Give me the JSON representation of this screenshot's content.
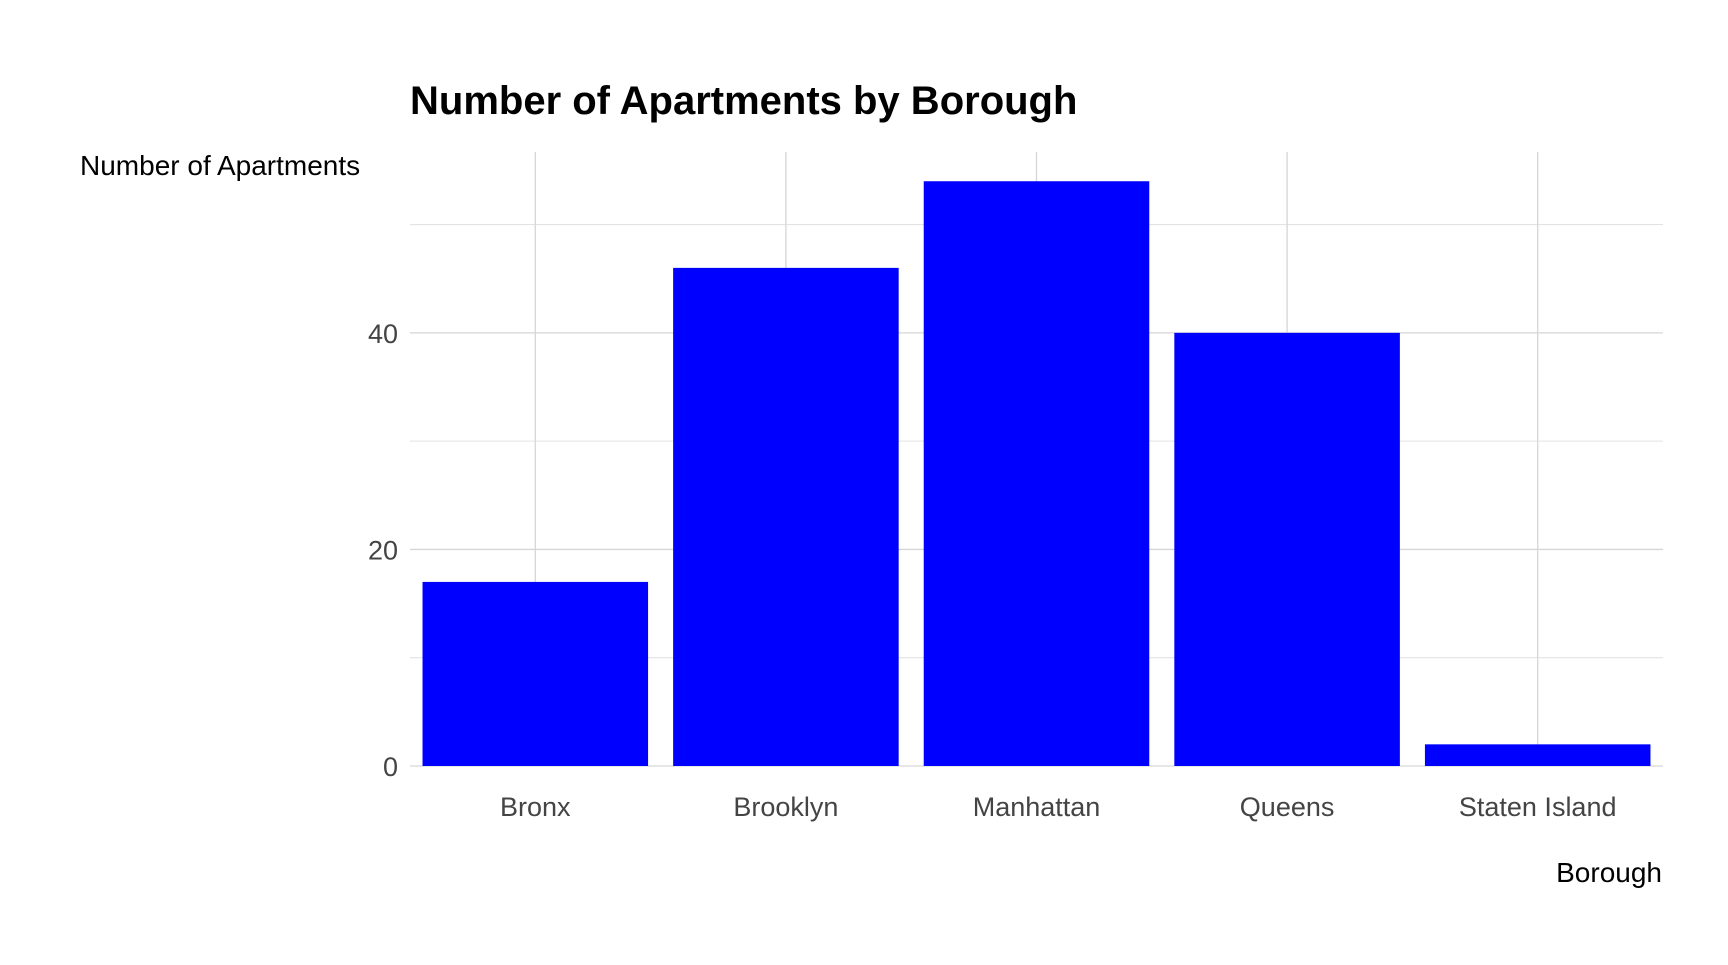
{
  "chart_data": {
    "type": "bar",
    "title": "Number of Apartments by Borough",
    "xlabel": "Borough",
    "ylabel": "Number of Apartments",
    "categories": [
      "Bronx",
      "Brooklyn",
      "Manhattan",
      "Queens",
      "Staten Island"
    ],
    "values": [
      17,
      46,
      54,
      40,
      2
    ],
    "ylim": [
      0,
      56.7
    ],
    "yticks": [
      0,
      20,
      40
    ],
    "grid": true,
    "bar_color": "#0000ff",
    "grid_color": "#d6d6d6"
  }
}
